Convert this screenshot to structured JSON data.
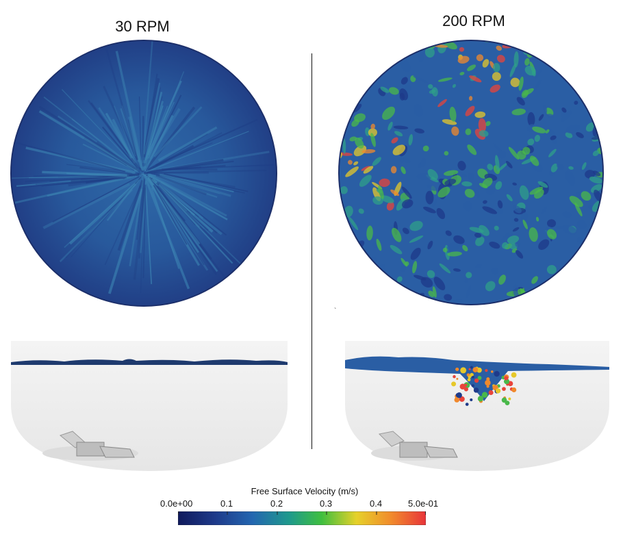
{
  "panels": {
    "left_title": "30 RPM",
    "right_title": "200 RPM"
  },
  "colorbar": {
    "title": "Free Surface Velocity (m/s)",
    "ticks": [
      "0.0e+00",
      "0.1",
      "0.2",
      "0.3",
      "0.4",
      "5.0e-01"
    ],
    "range": [
      0.0,
      0.5
    ],
    "colormap": "turbo"
  },
  "colors": {
    "low": "#1a2a7a",
    "mid_low": "#2a5fa6",
    "mid": "#2ea37a",
    "mid_high": "#e7c62a",
    "high": "#e8443a"
  }
}
